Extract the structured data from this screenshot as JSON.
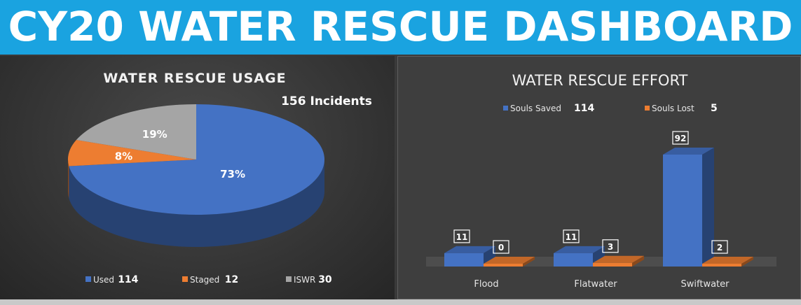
{
  "header": {
    "title": "CY20 WATER RESCUE DASHBOARD"
  },
  "chart_data": [
    {
      "type": "pie",
      "title": "WATER RESCUE USAGE",
      "annotation": "156 Incidents",
      "series": [
        {
          "name": "Used",
          "value": 114,
          "percent_label": "73%",
          "color": "#4472c4"
        },
        {
          "name": "Staged",
          "value": 12,
          "percent_label": "8%",
          "color": "#ed7d31"
        },
        {
          "name": "ISWR",
          "value": 30,
          "percent_label": "19%",
          "color": "#a5a5a5"
        }
      ],
      "legend": "bottom"
    },
    {
      "type": "bar",
      "title": "WATER RESCUE EFFORT",
      "categories": [
        "Flood",
        "Flatwater",
        "Swiftwater"
      ],
      "series": [
        {
          "name": "Souls Saved",
          "total": 114,
          "values": [
            11,
            11,
            92
          ],
          "color": "#4472c4"
        },
        {
          "name": "Souls Lost",
          "total": 5,
          "values": [
            0,
            3,
            2
          ],
          "color": "#ed7d31"
        }
      ],
      "ylim": [
        0,
        100
      ],
      "legend": "top"
    }
  ]
}
